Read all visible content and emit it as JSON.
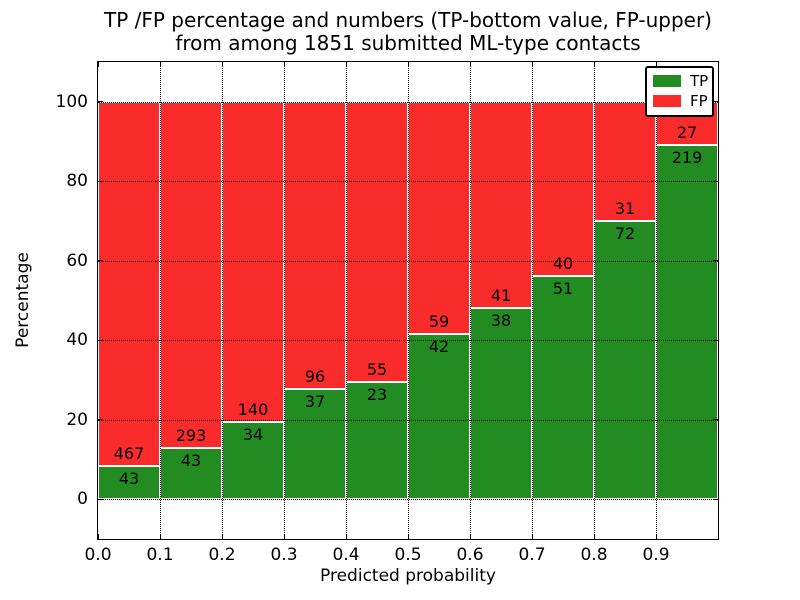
{
  "chart_data": {
    "type": "bar",
    "stacked": true,
    "normalized": "percent",
    "title_line1": "TP /FP percentage and numbers (TP-bottom value, FP-upper)",
    "title_line2": "from among 1851 submitted ML-type contacts",
    "xlabel": "Predicted probability",
    "ylabel": "Percentage",
    "total_contacts": 1851,
    "bin_width": 0.1,
    "categories": [
      0.0,
      0.1,
      0.2,
      0.3,
      0.4,
      0.5,
      0.6,
      0.7,
      0.8,
      0.9
    ],
    "series": [
      {
        "name": "TP",
        "color": "#228b22",
        "values": [
          43,
          43,
          34,
          37,
          23,
          42,
          38,
          51,
          72,
          219
        ]
      },
      {
        "name": "FP",
        "color": "#fa2b2b",
        "values": [
          467,
          293,
          140,
          96,
          55,
          59,
          41,
          40,
          31,
          27
        ]
      }
    ],
    "xticks": [
      "0.0",
      "0.1",
      "0.2",
      "0.3",
      "0.4",
      "0.5",
      "0.6",
      "0.7",
      "0.8",
      "0.9"
    ],
    "yticks": [
      0,
      20,
      40,
      60,
      80,
      100
    ],
    "xlim": [
      0,
      1
    ],
    "ylim": [
      -10,
      110
    ],
    "grid": "dotted",
    "grid_color": "#000000",
    "background_color": "#ffffff",
    "legend": {
      "position": "upper right",
      "entries": [
        {
          "label": "TP",
          "color": "#228b22"
        },
        {
          "label": "FP",
          "color": "#fa2b2b"
        }
      ]
    }
  }
}
